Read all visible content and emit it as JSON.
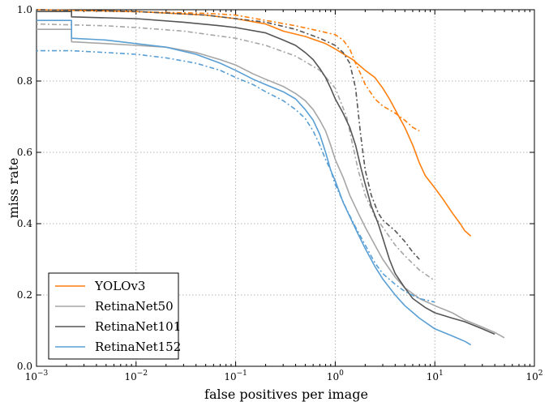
{
  "chart_data": {
    "type": "line",
    "xlabel": "false positives per image",
    "ylabel": "miss rate",
    "x_scale": "log",
    "xlim": [
      0.001,
      100
    ],
    "ylim": [
      0.0,
      1.0
    ],
    "x_ticks": [
      {
        "value": 0.001,
        "base": "10",
        "exp": "−3"
      },
      {
        "value": 0.01,
        "base": "10",
        "exp": "−2"
      },
      {
        "value": 0.1,
        "base": "10",
        "exp": "−1"
      },
      {
        "value": 1,
        "base": "10",
        "exp": "0"
      },
      {
        "value": 10,
        "base": "10",
        "exp": "1"
      },
      {
        "value": 100,
        "base": "10",
        "exp": "2"
      }
    ],
    "y_ticks": [
      {
        "value": 0.0,
        "label": "0.0"
      },
      {
        "value": 0.2,
        "label": "0.2"
      },
      {
        "value": 0.4,
        "label": "0.4"
      },
      {
        "value": 0.6,
        "label": "0.6"
      },
      {
        "value": 0.8,
        "label": "0.8"
      },
      {
        "value": 1.0,
        "label": "1.0"
      }
    ],
    "grid": true,
    "legend_position": "bottom-left",
    "series": [
      {
        "name": "YOLOv3",
        "color": "#ff7f0e",
        "solid": [
          [
            0.001,
            1.0
          ],
          [
            0.01,
            0.995
          ],
          [
            0.05,
            0.985
          ],
          [
            0.1,
            0.975
          ],
          [
            0.2,
            0.96
          ],
          [
            0.3,
            0.94
          ],
          [
            0.5,
            0.925
          ],
          [
            0.8,
            0.905
          ],
          [
            1.0,
            0.89
          ],
          [
            1.5,
            0.86
          ],
          [
            2.0,
            0.83
          ],
          [
            2.5,
            0.81
          ],
          [
            3.0,
            0.78
          ],
          [
            3.5,
            0.75
          ],
          [
            4.0,
            0.72
          ],
          [
            5.0,
            0.67
          ],
          [
            6.0,
            0.62
          ],
          [
            7.0,
            0.57
          ],
          [
            8.0,
            0.535
          ],
          [
            10.0,
            0.5
          ],
          [
            12.0,
            0.47
          ],
          [
            15.0,
            0.43
          ],
          [
            18.0,
            0.4
          ],
          [
            20.0,
            0.38
          ],
          [
            23.0,
            0.365
          ]
        ],
        "dashed": [
          [
            0.001,
            1.0
          ],
          [
            0.05,
            0.99
          ],
          [
            0.1,
            0.985
          ],
          [
            0.2,
            0.97
          ],
          [
            0.4,
            0.955
          ],
          [
            0.7,
            0.94
          ],
          [
            1.0,
            0.93
          ],
          [
            1.2,
            0.915
          ],
          [
            1.4,
            0.89
          ],
          [
            1.6,
            0.85
          ],
          [
            1.8,
            0.82
          ],
          [
            2.0,
            0.79
          ],
          [
            2.5,
            0.75
          ],
          [
            3.0,
            0.73
          ],
          [
            4.0,
            0.71
          ],
          [
            5.0,
            0.69
          ],
          [
            6.0,
            0.67
          ],
          [
            7.0,
            0.66
          ]
        ]
      },
      {
        "name": "RetinaNet50",
        "color": "#a6a6a6",
        "solid": [
          [
            0.001,
            0.945
          ],
          [
            0.00225,
            0.945
          ],
          [
            0.00225,
            0.91
          ],
          [
            0.005,
            0.905
          ],
          [
            0.01,
            0.9
          ],
          [
            0.02,
            0.895
          ],
          [
            0.04,
            0.88
          ],
          [
            0.07,
            0.86
          ],
          [
            0.1,
            0.845
          ],
          [
            0.15,
            0.82
          ],
          [
            0.2,
            0.805
          ],
          [
            0.3,
            0.785
          ],
          [
            0.4,
            0.765
          ],
          [
            0.5,
            0.745
          ],
          [
            0.6,
            0.72
          ],
          [
            0.7,
            0.69
          ],
          [
            0.8,
            0.66
          ],
          [
            0.9,
            0.62
          ],
          [
            1.0,
            0.58
          ],
          [
            1.2,
            0.53
          ],
          [
            1.4,
            0.48
          ],
          [
            1.7,
            0.43
          ],
          [
            2.0,
            0.39
          ],
          [
            2.5,
            0.34
          ],
          [
            3.0,
            0.3
          ],
          [
            4.0,
            0.25
          ],
          [
            5.0,
            0.22
          ],
          [
            7.0,
            0.19
          ],
          [
            10.0,
            0.17
          ],
          [
            15.0,
            0.15
          ],
          [
            20.0,
            0.13
          ],
          [
            30.0,
            0.11
          ],
          [
            40.0,
            0.095
          ],
          [
            50.0,
            0.08
          ]
        ],
        "dashed": [
          [
            0.001,
            0.96
          ],
          [
            0.005,
            0.955
          ],
          [
            0.01,
            0.95
          ],
          [
            0.03,
            0.94
          ],
          [
            0.1,
            0.92
          ],
          [
            0.2,
            0.9
          ],
          [
            0.4,
            0.87
          ],
          [
            0.7,
            0.83
          ],
          [
            1.0,
            0.78
          ],
          [
            1.3,
            0.7
          ],
          [
            1.5,
            0.62
          ],
          [
            1.7,
            0.55
          ],
          [
            2.0,
            0.48
          ],
          [
            2.5,
            0.42
          ],
          [
            3.0,
            0.39
          ],
          [
            4.0,
            0.34
          ],
          [
            5.0,
            0.31
          ],
          [
            7.0,
            0.27
          ],
          [
            10.0,
            0.24
          ]
        ]
      },
      {
        "name": "RetinaNet101",
        "color": "#555555",
        "solid": [
          [
            0.001,
            0.995
          ],
          [
            0.00225,
            0.995
          ],
          [
            0.00225,
            0.98
          ],
          [
            0.01,
            0.975
          ],
          [
            0.03,
            0.965
          ],
          [
            0.07,
            0.955
          ],
          [
            0.1,
            0.95
          ],
          [
            0.2,
            0.935
          ],
          [
            0.3,
            0.915
          ],
          [
            0.4,
            0.9
          ],
          [
            0.5,
            0.88
          ],
          [
            0.6,
            0.86
          ],
          [
            0.7,
            0.835
          ],
          [
            0.8,
            0.81
          ],
          [
            0.9,
            0.78
          ],
          [
            1.0,
            0.75
          ],
          [
            1.2,
            0.71
          ],
          [
            1.4,
            0.67
          ],
          [
            1.6,
            0.62
          ],
          [
            1.8,
            0.56
          ],
          [
            2.0,
            0.51
          ],
          [
            2.3,
            0.45
          ],
          [
            2.7,
            0.4
          ],
          [
            3.0,
            0.36
          ],
          [
            3.5,
            0.3
          ],
          [
            4.0,
            0.26
          ],
          [
            5.0,
            0.22
          ],
          [
            6.0,
            0.19
          ],
          [
            8.0,
            0.165
          ],
          [
            10.0,
            0.15
          ],
          [
            15.0,
            0.135
          ],
          [
            20.0,
            0.125
          ],
          [
            30.0,
            0.105
          ],
          [
            40.0,
            0.09
          ]
        ],
        "dashed": [
          [
            0.001,
            1.0
          ],
          [
            0.01,
            0.995
          ],
          [
            0.05,
            0.985
          ],
          [
            0.1,
            0.975
          ],
          [
            0.2,
            0.965
          ],
          [
            0.4,
            0.945
          ],
          [
            0.7,
            0.92
          ],
          [
            1.0,
            0.9
          ],
          [
            1.2,
            0.88
          ],
          [
            1.4,
            0.85
          ],
          [
            1.6,
            0.78
          ],
          [
            1.8,
            0.65
          ],
          [
            2.0,
            0.55
          ],
          [
            2.3,
            0.48
          ],
          [
            2.7,
            0.43
          ],
          [
            3.0,
            0.41
          ],
          [
            4.0,
            0.38
          ],
          [
            5.0,
            0.35
          ],
          [
            6.0,
            0.32
          ],
          [
            7.0,
            0.3
          ]
        ]
      },
      {
        "name": "RetinaNet152",
        "color": "#5a9fd4",
        "solid": [
          [
            0.001,
            0.97
          ],
          [
            0.00225,
            0.97
          ],
          [
            0.00225,
            0.92
          ],
          [
            0.005,
            0.915
          ],
          [
            0.01,
            0.905
          ],
          [
            0.02,
            0.895
          ],
          [
            0.04,
            0.875
          ],
          [
            0.07,
            0.85
          ],
          [
            0.1,
            0.83
          ],
          [
            0.15,
            0.805
          ],
          [
            0.2,
            0.79
          ],
          [
            0.3,
            0.77
          ],
          [
            0.4,
            0.75
          ],
          [
            0.5,
            0.72
          ],
          [
            0.6,
            0.69
          ],
          [
            0.7,
            0.65
          ],
          [
            0.8,
            0.6
          ],
          [
            0.9,
            0.55
          ],
          [
            1.0,
            0.52
          ],
          [
            1.2,
            0.46
          ],
          [
            1.4,
            0.42
          ],
          [
            1.7,
            0.37
          ],
          [
            2.0,
            0.33
          ],
          [
            2.5,
            0.28
          ],
          [
            3.0,
            0.245
          ],
          [
            4.0,
            0.2
          ],
          [
            5.0,
            0.17
          ],
          [
            7.0,
            0.135
          ],
          [
            10.0,
            0.105
          ],
          [
            15.0,
            0.085
          ],
          [
            20.0,
            0.07
          ],
          [
            23.0,
            0.06
          ]
        ],
        "dashed": [
          [
            0.001,
            0.885
          ],
          [
            0.00225,
            0.885
          ],
          [
            0.005,
            0.88
          ],
          [
            0.01,
            0.875
          ],
          [
            0.02,
            0.865
          ],
          [
            0.04,
            0.85
          ],
          [
            0.07,
            0.83
          ],
          [
            0.1,
            0.81
          ],
          [
            0.15,
            0.79
          ],
          [
            0.2,
            0.77
          ],
          [
            0.3,
            0.745
          ],
          [
            0.4,
            0.72
          ],
          [
            0.5,
            0.695
          ],
          [
            0.6,
            0.66
          ],
          [
            0.7,
            0.62
          ],
          [
            0.8,
            0.58
          ],
          [
            0.9,
            0.55
          ],
          [
            1.0,
            0.51
          ],
          [
            1.3,
            0.44
          ],
          [
            1.6,
            0.39
          ],
          [
            2.0,
            0.34
          ],
          [
            2.5,
            0.29
          ],
          [
            3.0,
            0.26
          ],
          [
            4.0,
            0.23
          ],
          [
            5.0,
            0.21
          ],
          [
            7.0,
            0.19
          ],
          [
            10.0,
            0.18
          ]
        ]
      }
    ]
  }
}
